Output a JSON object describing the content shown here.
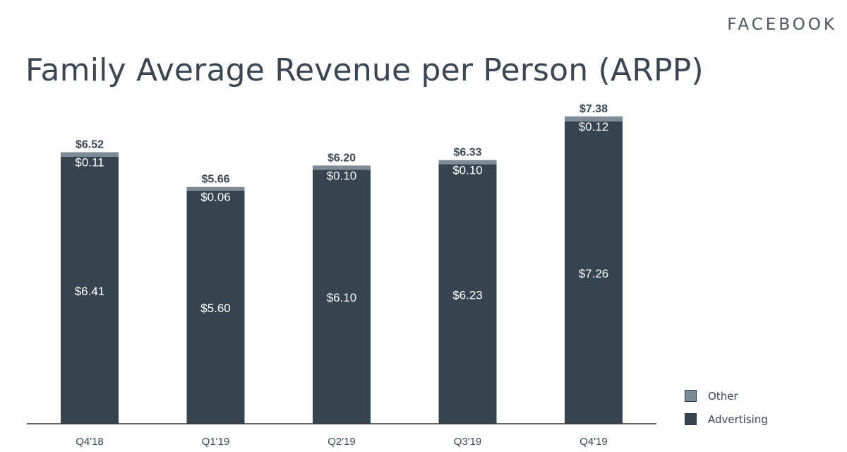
{
  "brand": "FACEBOOK",
  "colors": {
    "advertising": "#36444f",
    "other": "#7d8b97",
    "text_dark": "#3a4652",
    "text_light": "#ffffff",
    "axis": "#333333"
  },
  "chart_data": {
    "type": "bar",
    "stacked": true,
    "title": "Family Average Revenue per Person (ARPP)",
    "xlabel": "",
    "ylabel": "",
    "ylim": [
      0,
      7.8
    ],
    "grid": false,
    "legend_position": "bottom-right",
    "categories": [
      "Q4'18",
      "Q1'19",
      "Q2'19",
      "Q3'19",
      "Q4'19"
    ],
    "series": [
      {
        "name": "Advertising",
        "values": [
          6.41,
          5.6,
          6.1,
          6.23,
          7.26
        ],
        "labels": [
          "$6.41",
          "$5.60",
          "$6.10",
          "$6.23",
          "$7.26"
        ]
      },
      {
        "name": "Other",
        "values": [
          0.11,
          0.06,
          0.1,
          0.1,
          0.12
        ],
        "labels": [
          "$0.11",
          "$0.06",
          "$0.10",
          "$0.10",
          "$0.12"
        ]
      }
    ],
    "totals": [
      6.52,
      5.66,
      6.2,
      6.33,
      7.38
    ],
    "total_labels": [
      "$6.52",
      "$5.66",
      "$6.20",
      "$6.33",
      "$7.38"
    ],
    "legend": [
      "Other",
      "Advertising"
    ]
  }
}
